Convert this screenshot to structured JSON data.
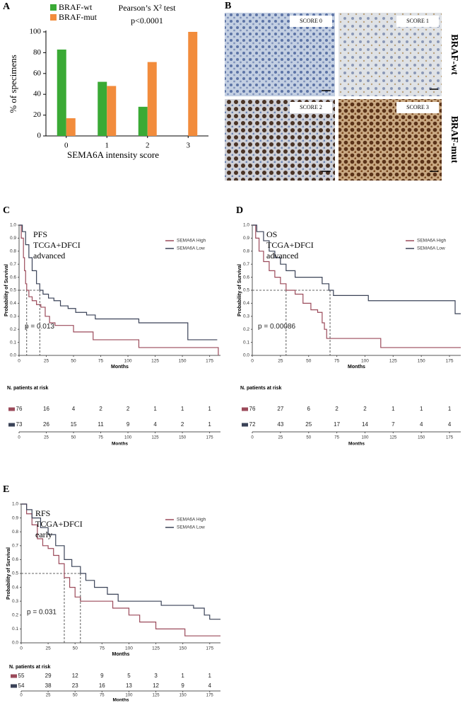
{
  "chart_data": [
    {
      "panel": "A",
      "type": "bar",
      "categories": [
        "0",
        "1",
        "2",
        "3"
      ],
      "series": [
        {
          "name": "BRAF-wt",
          "color": "#3aaa35",
          "values": [
            83,
            52,
            28,
            0
          ]
        },
        {
          "name": "BRAF-mut",
          "color": "#f28c3c",
          "values": [
            17,
            48,
            71,
            100
          ]
        }
      ],
      "xlabel": "SEMA6A intensity score",
      "ylabel": "% of specimens",
      "ylim": [
        0,
        100
      ],
      "yticks": [
        0,
        20,
        40,
        60,
        80,
        100
      ],
      "annotations": [
        "Pearson’s X² test",
        "p<0.0001"
      ],
      "legend": "upper left"
    },
    {
      "panel": "C",
      "type": "step",
      "annotations": [
        "PFS",
        "TCGA+DFCI",
        "advanced"
      ],
      "p_text": "p = 0.013",
      "xlabel": "Months",
      "ylabel": "Probability of Survival",
      "xlim": [
        0,
        185
      ],
      "xticks": [
        0,
        25,
        50,
        75,
        100,
        125,
        150,
        175
      ],
      "ylim": [
        0,
        1
      ],
      "yticks": [
        {
          "value": 0,
          "label": "0.0"
        },
        0.1,
        0.2,
        0.3,
        0.4,
        0.5,
        0.6,
        0.7,
        0.8,
        0.9,
        {
          "value": 1,
          "label": "1.0"
        }
      ],
      "reference_y": 0.5,
      "legend": "upper right",
      "series": [
        {
          "name": "SEMA6A High",
          "color": "#9b4a5a",
          "median": 7,
          "x": [
            0,
            2,
            4,
            5,
            6,
            7,
            9,
            12,
            16,
            20,
            24,
            28,
            33,
            50,
            68,
            110,
            183
          ],
          "y": [
            1,
            0.9,
            0.75,
            0.65,
            0.55,
            0.5,
            0.45,
            0.42,
            0.39,
            0.37,
            0.3,
            0.25,
            0.23,
            0.18,
            0.12,
            0.06,
            0
          ]
        },
        {
          "name": "SEMA6A Low",
          "color": "#3a4257",
          "median": 19,
          "x": [
            0,
            3,
            6,
            9,
            12,
            16,
            19,
            22,
            27,
            32,
            38,
            45,
            52,
            62,
            70,
            110,
            155,
            182
          ],
          "y": [
            1,
            0.95,
            0.85,
            0.75,
            0.65,
            0.55,
            0.5,
            0.47,
            0.44,
            0.42,
            0.38,
            0.36,
            0.33,
            0.31,
            0.28,
            0.25,
            0.12,
            0.12
          ]
        }
      ],
      "risk_table": {
        "title": "N. patients at risk",
        "rows": [
          [
            76,
            16,
            4,
            2,
            2,
            1,
            1,
            1
          ],
          [
            73,
            26,
            15,
            11,
            9,
            4,
            2,
            1
          ]
        ]
      }
    },
    {
      "panel": "D",
      "type": "step",
      "annotations": [
        "OS",
        "TCGA+DFCI",
        "advanced"
      ],
      "p_text": "p = 0.00086",
      "xlabel": "Months",
      "ylabel": "Probability of Survival",
      "xlim": [
        0,
        185
      ],
      "xticks": [
        0,
        25,
        50,
        75,
        100,
        125,
        150,
        175
      ],
      "ylim": [
        0,
        1
      ],
      "yticks": [
        {
          "value": 0,
          "label": "0.0"
        },
        0.1,
        0.2,
        0.3,
        0.4,
        0.5,
        0.6,
        0.7,
        0.8,
        0.9,
        {
          "value": 1,
          "label": "1.0"
        }
      ],
      "reference_y": 0.5,
      "legend": "upper right",
      "series": [
        {
          "name": "SEMA6A High",
          "color": "#9b4a5a",
          "median": 30,
          "x": [
            0,
            3,
            6,
            10,
            15,
            20,
            25,
            30,
            38,
            45,
            52,
            58,
            62,
            64,
            66,
            114,
            185
          ],
          "y": [
            1,
            0.9,
            0.8,
            0.72,
            0.65,
            0.6,
            0.55,
            0.5,
            0.47,
            0.4,
            0.35,
            0.33,
            0.25,
            0.2,
            0.13,
            0.06,
            0.06
          ]
        },
        {
          "name": "SEMA6A Low",
          "color": "#3a4257",
          "median": 69,
          "x": [
            0,
            4,
            10,
            15,
            20,
            25,
            30,
            38,
            62,
            68,
            72,
            103,
            180,
            185
          ],
          "y": [
            1,
            0.95,
            0.88,
            0.8,
            0.75,
            0.7,
            0.65,
            0.6,
            0.55,
            0.5,
            0.46,
            0.42,
            0.32,
            0.32
          ]
        }
      ],
      "risk_table": {
        "title": "N. patients at risk",
        "rows": [
          [
            76,
            27,
            6,
            2,
            2,
            1,
            1,
            1
          ],
          [
            72,
            43,
            25,
            17,
            14,
            7,
            4,
            4
          ]
        ]
      }
    },
    {
      "panel": "E",
      "type": "step",
      "annotations": [
        "RFS",
        "TCGA+DFCI",
        "early"
      ],
      "p_text": "p = 0.031",
      "xlabel": "Months",
      "ylabel": "Probability of Survival",
      "xlim": [
        0,
        185
      ],
      "xticks": [
        0,
        25,
        50,
        75,
        100,
        125,
        150,
        175
      ],
      "ylim": [
        0,
        1
      ],
      "yticks": [
        {
          "value": 0,
          "label": "0.0"
        },
        0.1,
        0.2,
        0.3,
        0.4,
        0.5,
        0.6,
        0.7,
        0.8,
        0.9,
        {
          "value": 1,
          "label": "1.0"
        }
      ],
      "reference_y": 0.5,
      "legend": "upper right",
      "series": [
        {
          "name": "SEMA6A High",
          "color": "#9b4a5a",
          "median": 40,
          "x": [
            0,
            5,
            10,
            15,
            20,
            25,
            30,
            35,
            40,
            45,
            50,
            55,
            85,
            100,
            110,
            125,
            152,
            185
          ],
          "y": [
            1,
            0.93,
            0.85,
            0.75,
            0.7,
            0.68,
            0.63,
            0.57,
            0.47,
            0.4,
            0.33,
            0.3,
            0.25,
            0.2,
            0.15,
            0.1,
            0.05,
            0.05
          ]
        },
        {
          "name": "SEMA6A Low",
          "color": "#3a4257",
          "median": 55,
          "x": [
            0,
            5,
            10,
            18,
            25,
            32,
            40,
            47,
            55,
            60,
            68,
            80,
            90,
            130,
            160,
            170,
            175,
            185
          ],
          "y": [
            1,
            0.96,
            0.9,
            0.83,
            0.78,
            0.7,
            0.6,
            0.55,
            0.5,
            0.45,
            0.4,
            0.35,
            0.3,
            0.27,
            0.25,
            0.2,
            0.17,
            0.17
          ]
        }
      ],
      "risk_table": {
        "title": "N. patients at risk",
        "rows": [
          [
            55,
            29,
            12,
            9,
            5,
            3,
            1,
            1
          ],
          [
            54,
            38,
            23,
            16,
            13,
            12,
            9,
            4
          ]
        ]
      }
    }
  ],
  "panel_b": {
    "panel": "B",
    "images": [
      {
        "label": "SCORE 0"
      },
      {
        "label": "SCORE 1"
      },
      {
        "label": "SCORE 2"
      },
      {
        "label": "SCORE 3"
      }
    ],
    "row_labels": [
      "BRAF-wt",
      "BRAF-mut"
    ]
  }
}
